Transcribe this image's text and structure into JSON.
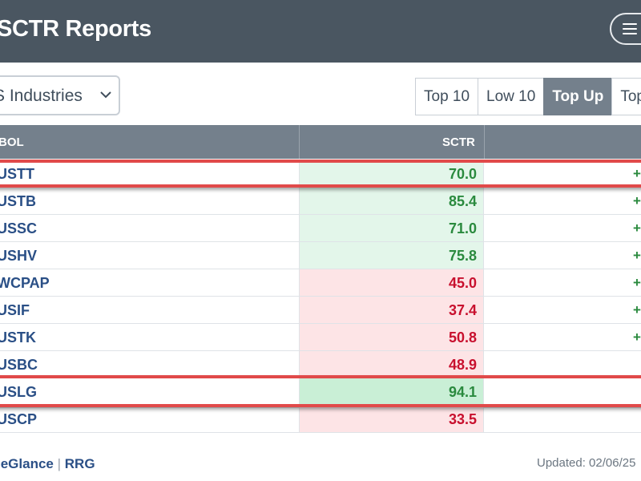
{
  "header": {
    "title": "SCTR Reports",
    "menu_icon": "hamburger-menu-icon"
  },
  "controls": {
    "group_select_value": "S Industries",
    "chevron_icon": "chevron-down-icon",
    "tabs": [
      {
        "label": "Top 10",
        "active": false
      },
      {
        "label": "Low 10",
        "active": false
      },
      {
        "label": "Top Up",
        "active": true
      },
      {
        "label": "Top D",
        "active": false
      }
    ]
  },
  "table": {
    "columns": {
      "symbol": "BOL",
      "sctr": "SCTR"
    },
    "rows": [
      {
        "symbol": "USTT",
        "sctr": "70.0",
        "change": "+",
        "status": "green"
      },
      {
        "symbol": "USTB",
        "sctr": "85.4",
        "change": "+",
        "status": "green"
      },
      {
        "symbol": "USSC",
        "sctr": "71.0",
        "change": "+",
        "status": "green"
      },
      {
        "symbol": "USHV",
        "sctr": "75.8",
        "change": "+",
        "status": "green"
      },
      {
        "symbol": "WCPAP",
        "sctr": "45.0",
        "change": "+",
        "status": "red"
      },
      {
        "symbol": "USIF",
        "sctr": "37.4",
        "change": "+",
        "status": "red"
      },
      {
        "symbol": "USTK",
        "sctr": "50.8",
        "change": "+",
        "status": "red"
      },
      {
        "symbol": "USBC",
        "sctr": "48.9",
        "change": "",
        "status": "red"
      },
      {
        "symbol": "USLG",
        "sctr": "94.1",
        "change": "",
        "status": "green"
      },
      {
        "symbol": "USCP",
        "sctr": "33.5",
        "change": "",
        "status": "red"
      }
    ]
  },
  "colors": {
    "header_bg": "#4a5661",
    "green_bg": "#e3f6ea",
    "green_bg_strong": "#c9efd6",
    "green_text": "#2a8a3e",
    "red_bg": "#fde4e6",
    "red_text": "#c8102e",
    "highlight": "#e14a4a"
  },
  "footer": {
    "link1": "leGlance",
    "separator": "|",
    "link2": "RRG",
    "updated": "Updated: 02/06/25"
  }
}
